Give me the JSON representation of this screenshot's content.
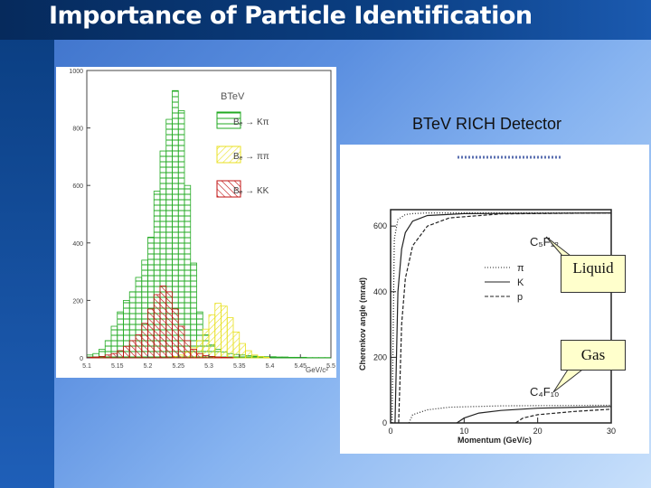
{
  "slide": {
    "title": "Importance of Particle Identification",
    "detector_label": "BTeV RICH Detector",
    "callout_liquid": "Liquid",
    "callout_gas": "Gas"
  },
  "histogram": {
    "header": "BTeV",
    "legend": [
      {
        "label": "Bₑ → Kπ",
        "color": "#22aa22"
      },
      {
        "label": "Bₑ → ππ",
        "color": "#e8e020"
      },
      {
        "label": "Bₑ → KK",
        "color": "#c01010"
      }
    ],
    "y_ticks": [
      "1000",
      "800",
      "600",
      "400",
      "200",
      "0"
    ],
    "x_ticks": [
      "5.1",
      "5.15",
      "5.2",
      "5.25",
      "5.3",
      "5.35",
      "5.4",
      "5.45",
      "5.5"
    ],
    "x_unit": "GeV/c²"
  },
  "rich_plot": {
    "y_label": "Cherenkov angle (mrad)",
    "x_label": "Momentum (GeV/c)",
    "y_ticks": [
      "600",
      "400",
      "200",
      "0"
    ],
    "x_ticks": [
      "0",
      "10",
      "20",
      "30"
    ],
    "liquid_material": "C₅F₁₂",
    "gas_material": "C₄F₁₀",
    "legend": [
      "π",
      "K",
      "p"
    ]
  },
  "chart_data": [
    {
      "type": "bar",
      "title": "BTeV",
      "xlabel": "GeV/c²",
      "ylabel": "",
      "xlim": [
        5.1,
        5.5
      ],
      "ylim": [
        0,
        1000
      ],
      "categories": [
        5.1,
        5.11,
        5.12,
        5.13,
        5.14,
        5.15,
        5.16,
        5.17,
        5.18,
        5.19,
        5.2,
        5.21,
        5.22,
        5.23,
        5.24,
        5.25,
        5.26,
        5.27,
        5.28,
        5.29,
        5.3,
        5.31,
        5.32,
        5.33,
        5.34,
        5.35,
        5.36,
        5.37,
        5.38,
        5.39,
        5.4,
        5.41,
        5.42,
        5.43,
        5.44,
        5.45,
        5.46,
        5.47,
        5.48,
        5.49
      ],
      "series": [
        {
          "name": "Bₑ → Kπ",
          "values": [
            10,
            15,
            30,
            60,
            110,
            160,
            200,
            230,
            280,
            340,
            420,
            580,
            720,
            830,
            930,
            860,
            600,
            330,
            160,
            80,
            45,
            30,
            20,
            15,
            12,
            10,
            8,
            6,
            5,
            4,
            4,
            3,
            3,
            2,
            2,
            2,
            1,
            1,
            1,
            1
          ]
        },
        {
          "name": "Bₑ → ππ",
          "values": [
            0,
            0,
            0,
            0,
            0,
            0,
            0,
            0,
            0,
            0,
            0,
            0,
            0,
            0,
            5,
            10,
            20,
            35,
            60,
            100,
            150,
            190,
            180,
            140,
            90,
            50,
            25,
            10,
            5,
            2,
            0,
            0,
            0,
            0,
            0,
            0,
            0,
            0,
            0,
            0
          ]
        },
        {
          "name": "Bₑ → KK",
          "values": [
            2,
            3,
            5,
            10,
            15,
            25,
            40,
            60,
            80,
            120,
            170,
            220,
            250,
            230,
            170,
            110,
            60,
            30,
            15,
            8,
            5,
            3,
            2,
            1,
            0,
            0,
            0,
            0,
            0,
            0,
            0,
            0,
            0,
            0,
            0,
            0,
            0,
            0,
            0,
            0
          ]
        }
      ]
    },
    {
      "type": "line",
      "xlabel": "Momentum (GeV/c)",
      "ylabel": "Cherenkov angle (mrad)",
      "xlim": [
        0,
        30
      ],
      "ylim": [
        0,
        650
      ],
      "series": [
        {
          "name": "π C₅F₁₂",
          "x": [
            0.2,
            0.5,
            1,
            2,
            3,
            5,
            10,
            20,
            30
          ],
          "y": [
            0,
            560,
            620,
            635,
            638,
            640,
            640,
            640,
            640
          ]
        },
        {
          "name": "K C₅F₁₂",
          "x": [
            0.6,
            0.8,
            1,
            1.5,
            2,
            3,
            5,
            10,
            30
          ],
          "y": [
            0,
            200,
            400,
            530,
            580,
            615,
            632,
            638,
            640
          ]
        },
        {
          "name": "p C₅F₁₂",
          "x": [
            1.1,
            1.3,
            1.5,
            2,
            3,
            5,
            8,
            15,
            30
          ],
          "y": [
            0,
            150,
            300,
            440,
            540,
            600,
            625,
            637,
            640
          ]
        },
        {
          "name": "π C₄F₁₀",
          "x": [
            2.5,
            3,
            5,
            8,
            15,
            30
          ],
          "y": [
            0,
            25,
            40,
            48,
            52,
            54
          ]
        },
        {
          "name": "K C₄F₁₀",
          "x": [
            9,
            10,
            12,
            15,
            20,
            30
          ],
          "y": [
            0,
            15,
            30,
            38,
            45,
            50
          ]
        },
        {
          "name": "p C₄F₁₀",
          "x": [
            17,
            18,
            20,
            25,
            30
          ],
          "y": [
            0,
            15,
            25,
            35,
            42
          ]
        }
      ]
    }
  ]
}
